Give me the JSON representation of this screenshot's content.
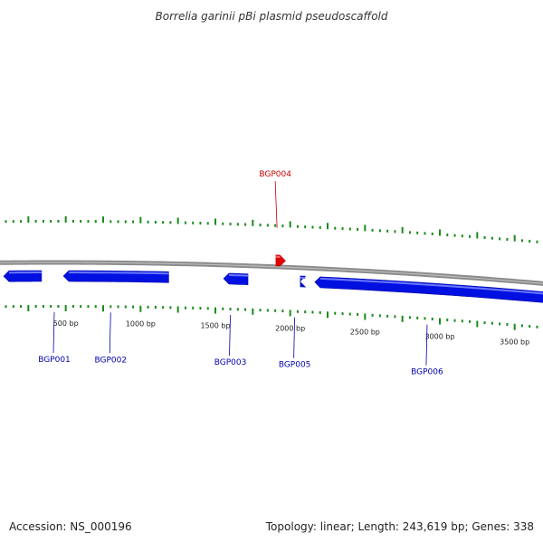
{
  "title": "Borrelia garinii pBi plasmid pseudoscaffold",
  "footer": {
    "accession": "Accession: NS_000196",
    "summary": "Topology: linear; Length: 243,619 bp; Genes: 338"
  },
  "colors": {
    "backbone": "#8a8a8a",
    "forward_gene": "#e00000",
    "reverse_gene": "#0010e0",
    "tick": "#1a8a1a",
    "reverse_label": "#0000b0",
    "forward_label": "#c00000"
  },
  "scale": {
    "unit": "bp",
    "min": 0,
    "max": 3750
  },
  "position_labels": [
    "500 bp",
    "1000 bp",
    "1500 bp",
    "2000 bp",
    "2500 bp",
    "3000 bp",
    "3500 bp"
  ],
  "genes": [
    {
      "name": "BGP001",
      "start": 0,
      "end": 350,
      "strand": "-"
    },
    {
      "name": "BGP002",
      "start": 400,
      "end": 1200,
      "strand": "-"
    },
    {
      "name": "BGP003",
      "start": 1470,
      "end": 1730,
      "strand": "-"
    },
    {
      "name": "BGP004",
      "start": 1820,
      "end": 1980,
      "strand": "+"
    },
    {
      "name": "BGP005",
      "start": 1980,
      "end": 2080,
      "strand": "-"
    },
    {
      "name": "BGP006",
      "start": 2080,
      "end": 3750,
      "strand": "-"
    }
  ]
}
